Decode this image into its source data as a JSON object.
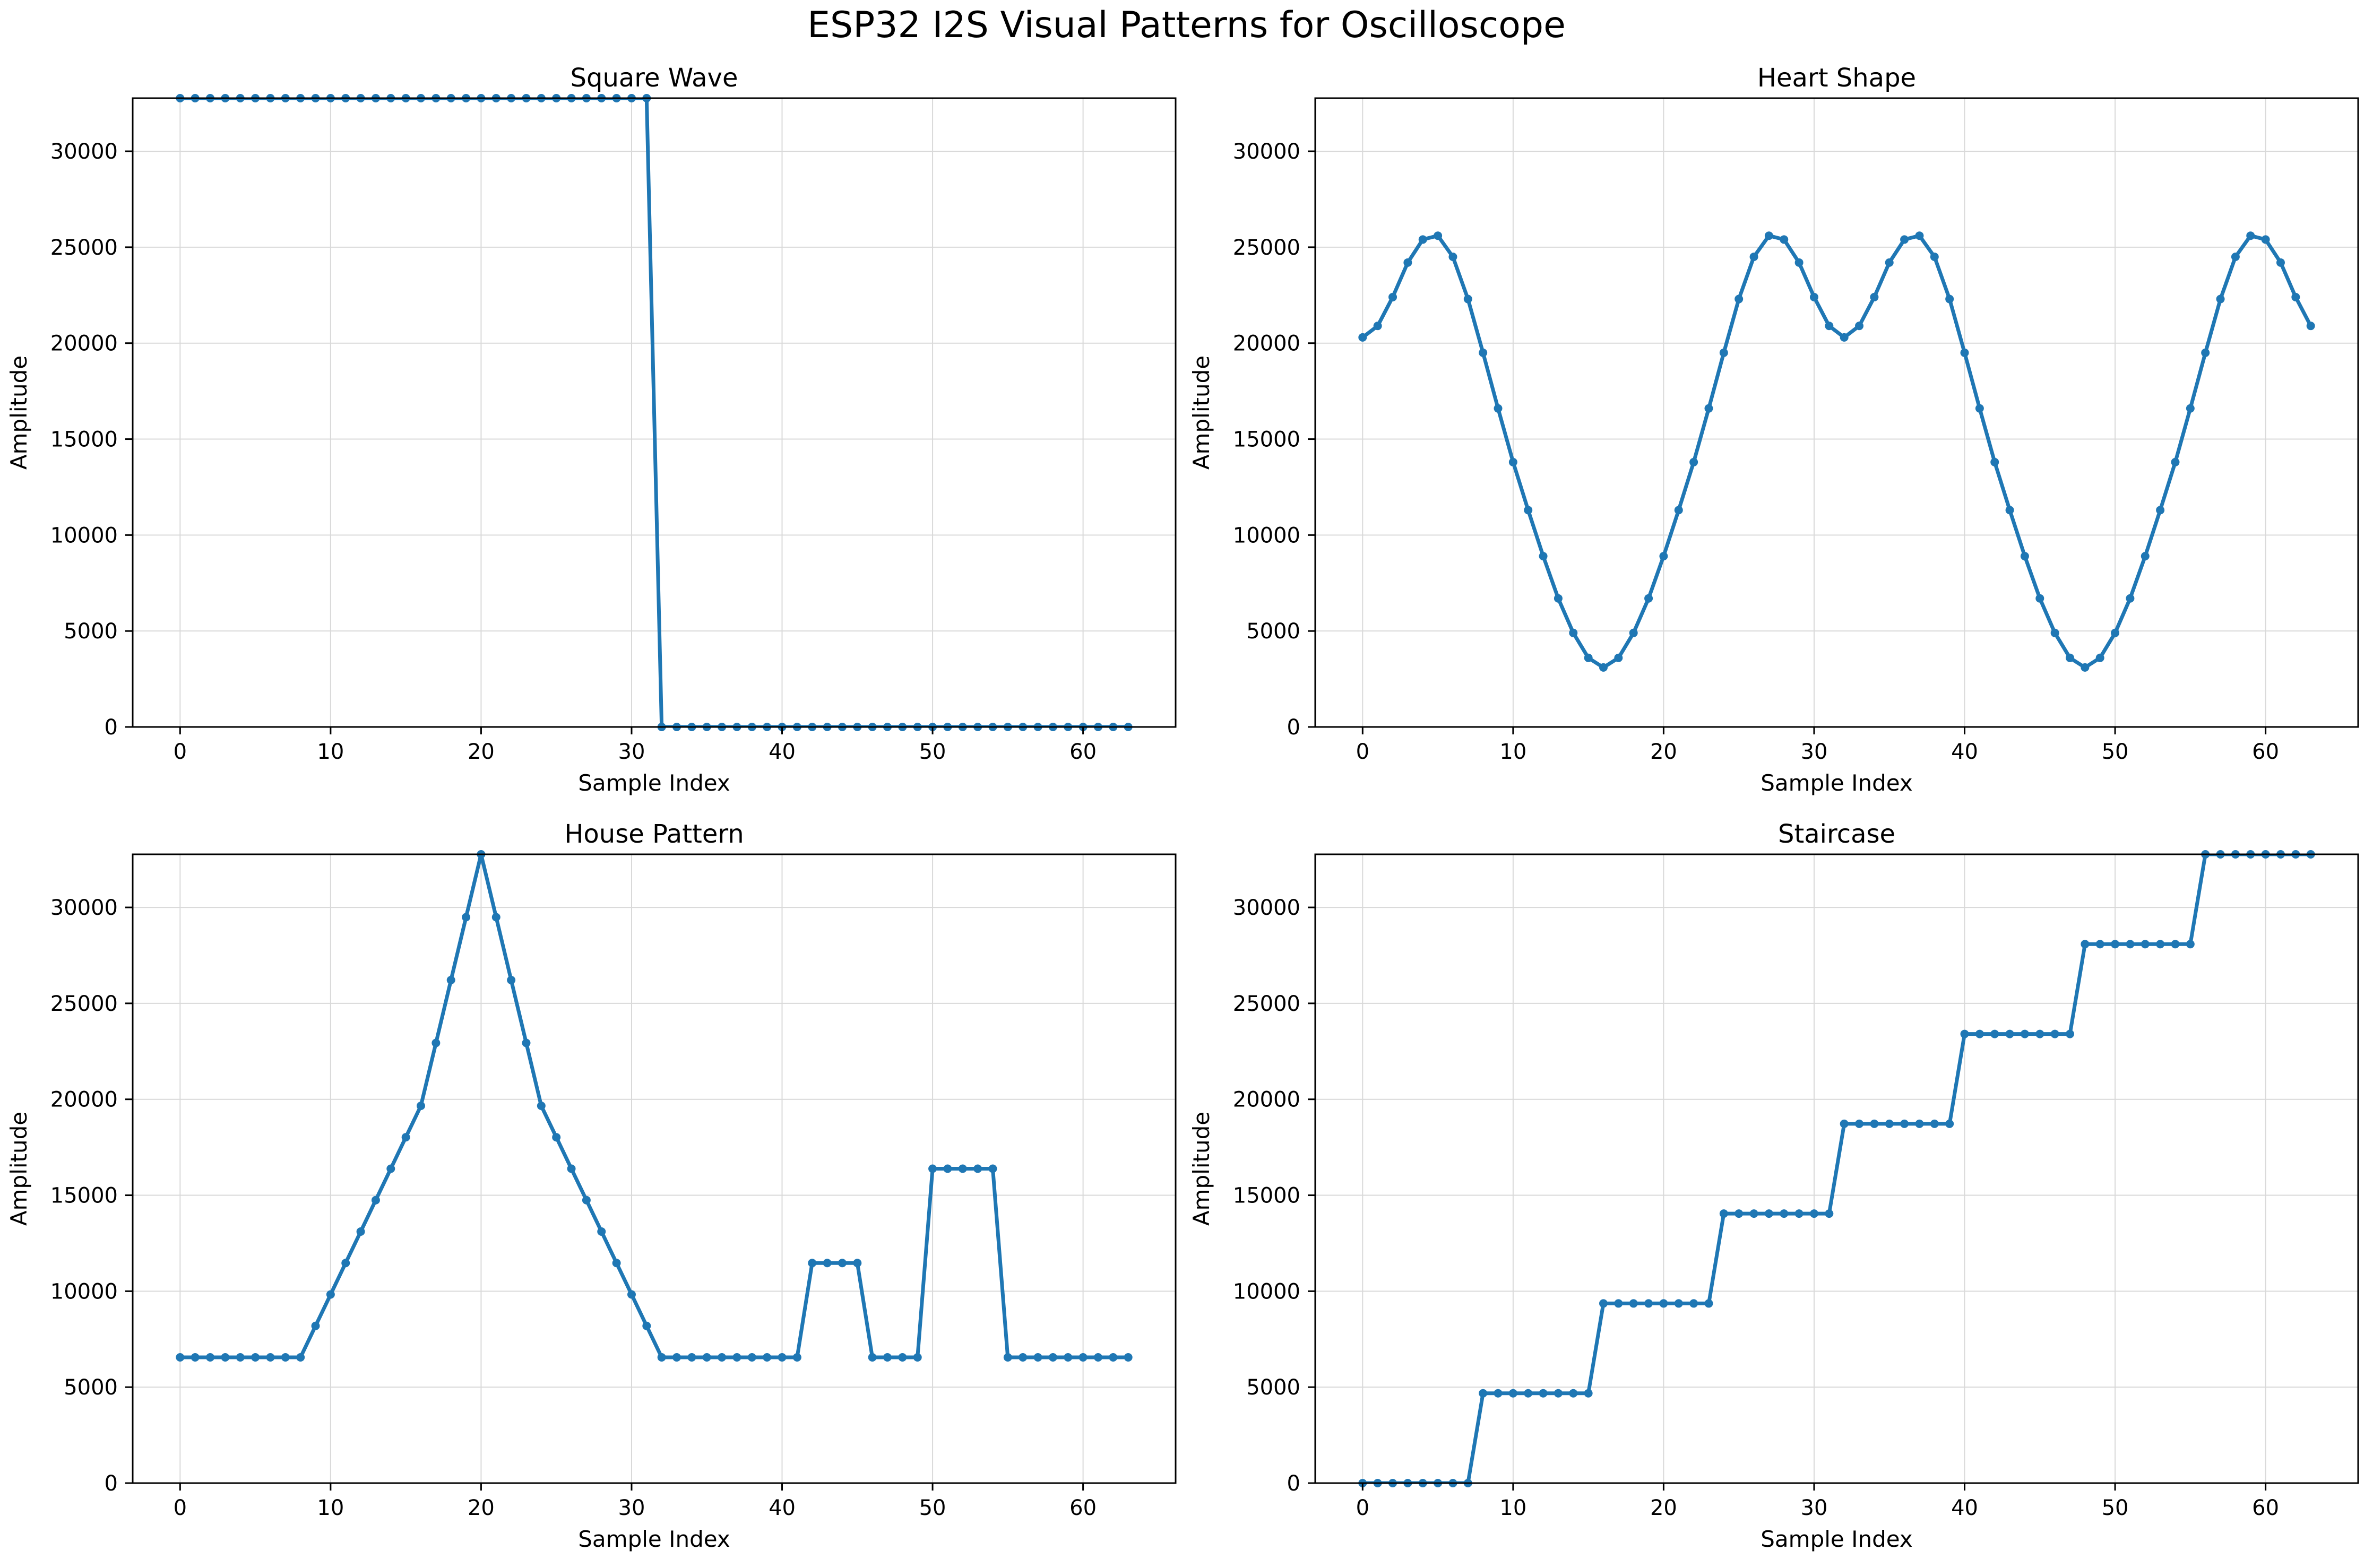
{
  "figure": {
    "title": "ESP32 I2S Visual Patterns for Oscilloscope"
  },
  "colors": {
    "line": "#1f77b4",
    "grid": "#d9d9d9",
    "axis": "#000000"
  },
  "chart_data": [
    {
      "type": "line",
      "title": "Square Wave",
      "xlabel": "Sample Index",
      "ylabel": "Amplitude",
      "xlim": [
        -3.15,
        66.15
      ],
      "ylim": [
        0,
        32767
      ],
      "xticks": [
        0,
        10,
        20,
        30,
        40,
        50,
        60
      ],
      "yticks": [
        0,
        5000,
        10000,
        15000,
        20000,
        25000,
        30000
      ],
      "grid": true,
      "markers": "circle",
      "x": [
        0,
        1,
        2,
        3,
        4,
        5,
        6,
        7,
        8,
        9,
        10,
        11,
        12,
        13,
        14,
        15,
        16,
        17,
        18,
        19,
        20,
        21,
        22,
        23,
        24,
        25,
        26,
        27,
        28,
        29,
        30,
        31,
        32,
        33,
        34,
        35,
        36,
        37,
        38,
        39,
        40,
        41,
        42,
        43,
        44,
        45,
        46,
        47,
        48,
        49,
        50,
        51,
        52,
        53,
        54,
        55,
        56,
        57,
        58,
        59,
        60,
        61,
        62,
        63
      ],
      "y": [
        32767,
        32767,
        32767,
        32767,
        32767,
        32767,
        32767,
        32767,
        32767,
        32767,
        32767,
        32767,
        32767,
        32767,
        32767,
        32767,
        32767,
        32767,
        32767,
        32767,
        32767,
        32767,
        32767,
        32767,
        32767,
        32767,
        32767,
        32767,
        32767,
        32767,
        32767,
        32767,
        0,
        0,
        0,
        0,
        0,
        0,
        0,
        0,
        0,
        0,
        0,
        0,
        0,
        0,
        0,
        0,
        0,
        0,
        0,
        0,
        0,
        0,
        0,
        0,
        0,
        0,
        0,
        0,
        0,
        0,
        0,
        0
      ]
    },
    {
      "type": "line",
      "title": "Heart Shape",
      "xlabel": "Sample Index",
      "ylabel": "Amplitude",
      "xlim": [
        -3.15,
        66.15
      ],
      "ylim": [
        0,
        32767
      ],
      "xticks": [
        0,
        10,
        20,
        30,
        40,
        50,
        60
      ],
      "yticks": [
        0,
        5000,
        10000,
        15000,
        20000,
        25000,
        30000
      ],
      "grid": true,
      "markers": "circle",
      "x": [
        0,
        1,
        2,
        3,
        4,
        5,
        6,
        7,
        8,
        9,
        10,
        11,
        12,
        13,
        14,
        15,
        16,
        17,
        18,
        19,
        20,
        21,
        22,
        23,
        24,
        25,
        26,
        27,
        28,
        29,
        30,
        31,
        32,
        33,
        34,
        35,
        36,
        37,
        38,
        39,
        40,
        41,
        42,
        43,
        44,
        45,
        46,
        47,
        48,
        49,
        50,
        51,
        52,
        53,
        54,
        55,
        56,
        57,
        58,
        59,
        60,
        61,
        62,
        63
      ],
      "y": [
        20300,
        20900,
        22400,
        24200,
        25400,
        25600,
        24500,
        22300,
        19500,
        16600,
        13800,
        11300,
        8900,
        6700,
        4900,
        3600,
        3100,
        3600,
        4900,
        6700,
        8900,
        11300,
        13800,
        16600,
        19500,
        22300,
        24500,
        25600,
        25400,
        24200,
        22400,
        20900,
        20300,
        20900,
        22400,
        24200,
        25400,
        25600,
        24500,
        22300,
        19500,
        16600,
        13800,
        11300,
        8900,
        6700,
        4900,
        3600,
        3100,
        3600,
        4900,
        6700,
        8900,
        11300,
        13800,
        16600,
        19500,
        22300,
        24500,
        25600,
        25400,
        24200,
        22400,
        20900
      ]
    },
    {
      "type": "line",
      "title": "House Pattern",
      "xlabel": "Sample Index",
      "ylabel": "Amplitude",
      "xlim": [
        -3.15,
        66.15
      ],
      "ylim": [
        0,
        32767
      ],
      "xticks": [
        0,
        10,
        20,
        30,
        40,
        50,
        60
      ],
      "yticks": [
        0,
        5000,
        10000,
        15000,
        20000,
        25000,
        30000
      ],
      "grid": true,
      "markers": "circle",
      "x": [
        0,
        1,
        2,
        3,
        4,
        5,
        6,
        7,
        8,
        9,
        10,
        11,
        12,
        13,
        14,
        15,
        16,
        17,
        18,
        19,
        20,
        21,
        22,
        23,
        24,
        25,
        26,
        27,
        28,
        29,
        30,
        31,
        32,
        33,
        34,
        35,
        36,
        37,
        38,
        39,
        40,
        41,
        42,
        43,
        44,
        45,
        46,
        47,
        48,
        49,
        50,
        51,
        52,
        53,
        54,
        55,
        56,
        57,
        58,
        59,
        60,
        61,
        62,
        63
      ],
      "y": [
        6553,
        6553,
        6553,
        6553,
        6553,
        6553,
        6553,
        6553,
        6553,
        8192,
        9830,
        11468,
        13107,
        14745,
        16383,
        18022,
        19660,
        22937,
        26214,
        29490,
        32767,
        29490,
        26214,
        22937,
        19660,
        18022,
        16383,
        14745,
        13107,
        11468,
        9830,
        8192,
        6553,
        6553,
        6553,
        6553,
        6553,
        6553,
        6553,
        6553,
        6553,
        6553,
        11468,
        11468,
        11468,
        11468,
        6553,
        6553,
        6553,
        6553,
        16383,
        16383,
        16383,
        16383,
        16383,
        6553,
        6553,
        6553,
        6553,
        6553,
        6553,
        6553,
        6553,
        6553
      ]
    },
    {
      "type": "line",
      "title": "Staircase",
      "xlabel": "Sample Index",
      "ylabel": "Amplitude",
      "xlim": [
        -3.15,
        66.15
      ],
      "ylim": [
        0,
        32767
      ],
      "xticks": [
        0,
        10,
        20,
        30,
        40,
        50,
        60
      ],
      "yticks": [
        0,
        5000,
        10000,
        15000,
        20000,
        25000,
        30000
      ],
      "grid": true,
      "markers": "circle",
      "x": [
        0,
        1,
        2,
        3,
        4,
        5,
        6,
        7,
        8,
        9,
        10,
        11,
        12,
        13,
        14,
        15,
        16,
        17,
        18,
        19,
        20,
        21,
        22,
        23,
        24,
        25,
        26,
        27,
        28,
        29,
        30,
        31,
        32,
        33,
        34,
        35,
        36,
        37,
        38,
        39,
        40,
        41,
        42,
        43,
        44,
        45,
        46,
        47,
        48,
        49,
        50,
        51,
        52,
        53,
        54,
        55,
        56,
        57,
        58,
        59,
        60,
        61,
        62,
        63
      ],
      "y": [
        0,
        0,
        0,
        0,
        0,
        0,
        0,
        0,
        4681,
        4681,
        4681,
        4681,
        4681,
        4681,
        4681,
        4681,
        9362,
        9362,
        9362,
        9362,
        9362,
        9362,
        9362,
        9362,
        14043,
        14043,
        14043,
        14043,
        14043,
        14043,
        14043,
        14043,
        18724,
        18724,
        18724,
        18724,
        18724,
        18724,
        18724,
        18724,
        23405,
        23405,
        23405,
        23405,
        23405,
        23405,
        23405,
        23405,
        28086,
        28086,
        28086,
        28086,
        28086,
        28086,
        28086,
        28086,
        32767,
        32767,
        32767,
        32767,
        32767,
        32767,
        32767,
        32767
      ]
    }
  ]
}
